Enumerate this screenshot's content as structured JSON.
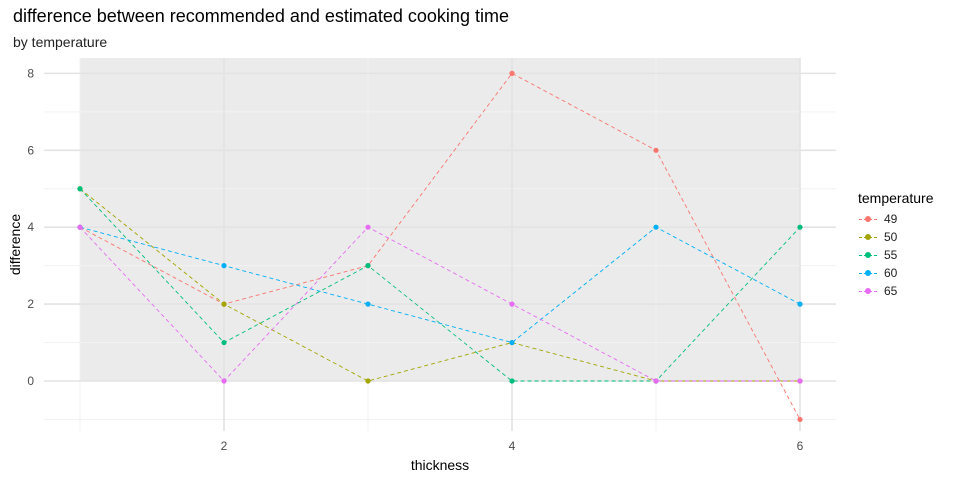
{
  "chart_data": {
    "type": "line",
    "title": "difference between recommended and estimated cooking time",
    "subtitle": "by temperature",
    "xlabel": "thickness",
    "ylabel": "difference",
    "x": [
      1,
      2,
      3,
      4,
      5,
      6
    ],
    "xlim": [
      0.75,
      6.25
    ],
    "ylim": [
      -1.3,
      8.4
    ],
    "x_ticks": [
      2,
      4,
      6
    ],
    "x_minor_ticks": [
      1,
      3,
      5
    ],
    "y_ticks": [
      0,
      2,
      4,
      6,
      8
    ],
    "y_minor_ticks": [
      -1,
      1,
      3,
      5,
      7
    ],
    "panel_x_range": [
      1,
      6
    ],
    "panel_y_range": [
      0,
      8.4
    ],
    "grid": true,
    "line_style": "dashed",
    "legend_title": "temperature",
    "legend_position": "right",
    "series": [
      {
        "name": "49",
        "color": "#F8766D",
        "values": [
          4,
          2,
          3,
          8,
          6,
          -1
        ]
      },
      {
        "name": "50",
        "color": "#A3A500",
        "values": [
          5,
          2,
          0,
          1,
          0,
          0
        ]
      },
      {
        "name": "55",
        "color": "#00BF7D",
        "values": [
          5,
          1,
          3,
          0,
          0,
          4
        ]
      },
      {
        "name": "60",
        "color": "#00B0F6",
        "values": [
          4,
          3,
          2,
          1,
          4,
          2
        ]
      },
      {
        "name": "65",
        "color": "#E76BF3",
        "values": [
          4,
          0,
          4,
          2,
          0,
          0
        ]
      }
    ]
  }
}
